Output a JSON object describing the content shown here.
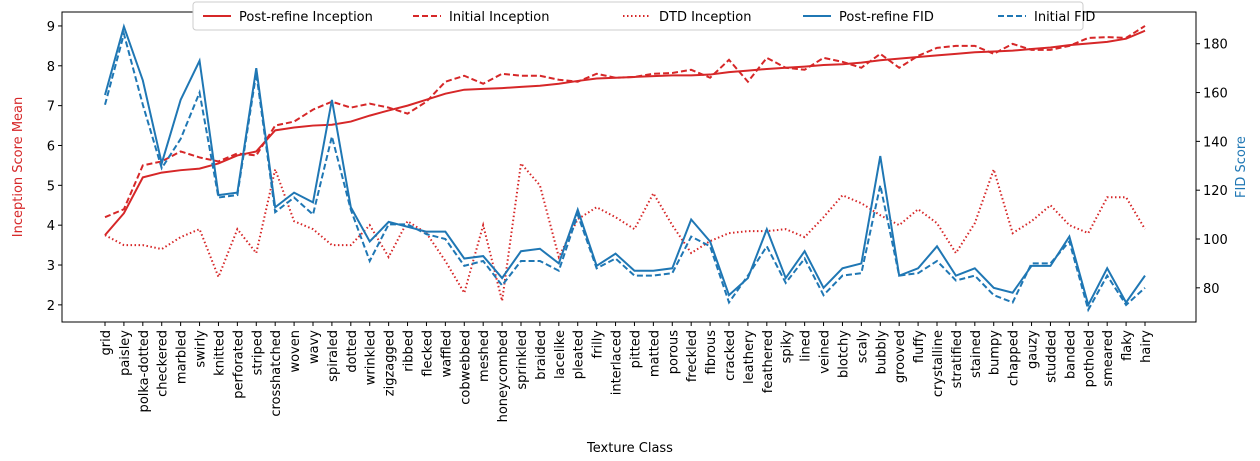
{
  "chart_data": {
    "type": "line",
    "x_label": "Texture Class",
    "y_label": "Inception Score Mean",
    "y2_label": "FID Score",
    "categories": [
      "grid",
      "paisley",
      "polka-dotted",
      "checkered",
      "marbled",
      "swirly",
      "knitted",
      "perforated",
      "striped",
      "crosshatched",
      "woven",
      "wavy",
      "spiraled",
      "dotted",
      "wrinkled",
      "zigzagged",
      "ribbed",
      "flecked",
      "waffled",
      "cobwebbed",
      "meshed",
      "honeycombed",
      "sprinkled",
      "braided",
      "lacelike",
      "pleated",
      "frilly",
      "interlaced",
      "pitted",
      "matted",
      "porous",
      "freckled",
      "fibrous",
      "cracked",
      "leathery",
      "feathered",
      "spiky",
      "lined",
      "veined",
      "blotchy",
      "scaly",
      "bubbly",
      "grooved",
      "fluffy",
      "crystalline",
      "stratified",
      "stained",
      "bumpy",
      "chapped",
      "gauzy",
      "studded",
      "banded",
      "potholed",
      "smeared",
      "flaky",
      "hairy"
    ],
    "ylim": [
      1.57,
      9.35
    ],
    "yticks": [
      2,
      3,
      4,
      5,
      6,
      7,
      8,
      9
    ],
    "y2lim": [
      66,
      193
    ],
    "y2ticks": [
      80,
      100,
      120,
      140,
      160,
      180
    ],
    "y_color": "#d62728",
    "y2_color": "#1f77b4",
    "legend": "upper center",
    "series": [
      {
        "name": "Post-refine Inception",
        "color": "#d62728",
        "linestyle": "solid",
        "values": [
          3.75,
          4.3,
          5.2,
          5.32,
          5.38,
          5.42,
          5.55,
          5.75,
          5.85,
          6.38,
          6.45,
          6.5,
          6.52,
          6.6,
          6.75,
          6.88,
          7.0,
          7.15,
          7.3,
          7.4,
          7.42,
          7.44,
          7.47,
          7.5,
          7.55,
          7.62,
          7.68,
          7.7,
          7.72,
          7.74,
          7.76,
          7.76,
          7.78,
          7.84,
          7.88,
          7.92,
          7.95,
          7.98,
          8.02,
          8.04,
          8.08,
          8.14,
          8.18,
          8.22,
          8.26,
          8.3,
          8.34,
          8.36,
          8.38,
          8.42,
          8.46,
          8.52,
          8.56,
          8.6,
          8.68,
          8.88
        ]
      },
      {
        "name": "Initial Inception",
        "color": "#d62728",
        "linestyle": "dashed",
        "values": [
          4.2,
          4.4,
          5.5,
          5.6,
          5.85,
          5.7,
          5.6,
          5.8,
          5.75,
          6.5,
          6.6,
          6.9,
          7.1,
          6.95,
          7.05,
          6.95,
          6.8,
          7.1,
          7.6,
          7.75,
          7.55,
          7.8,
          7.75,
          7.75,
          7.65,
          7.6,
          7.8,
          7.7,
          7.72,
          7.8,
          7.82,
          7.9,
          7.7,
          8.15,
          7.6,
          8.2,
          7.95,
          7.9,
          8.2,
          8.1,
          7.95,
          8.3,
          7.95,
          8.25,
          8.45,
          8.5,
          8.5,
          8.3,
          8.55,
          8.4,
          8.4,
          8.5,
          8.7,
          8.72,
          8.7,
          9.0
        ]
      },
      {
        "name": "DTD Inception",
        "color": "#d62728",
        "linestyle": "dotted",
        "values": [
          3.75,
          3.5,
          3.5,
          3.4,
          3.7,
          3.9,
          2.7,
          3.9,
          3.3,
          5.4,
          4.1,
          3.9,
          3.5,
          3.5,
          4.0,
          3.2,
          4.1,
          3.8,
          3.1,
          2.3,
          4.0,
          2.1,
          5.55,
          5.0,
          3.2,
          4.15,
          4.45,
          4.2,
          3.9,
          4.8,
          4.0,
          3.3,
          3.6,
          3.8,
          3.85,
          3.85,
          3.9,
          3.7,
          4.2,
          4.75,
          4.55,
          4.25,
          4.0,
          4.4,
          4.05,
          3.3,
          4.05,
          5.4,
          3.8,
          4.1,
          4.5,
          4.0,
          3.8,
          4.7,
          4.7,
          3.9
        ]
      },
      {
        "name": "Post-refine FID",
        "color": "#1f77b4",
        "linestyle": "solid",
        "axis": "y2",
        "values": [
          159,
          187,
          165,
          131,
          157,
          173,
          118,
          119,
          170,
          113,
          119,
          115,
          157,
          113,
          99,
          107,
          105,
          103,
          103,
          92,
          93,
          84,
          95,
          96,
          90,
          112,
          89,
          94,
          87,
          87,
          88,
          108,
          99,
          77,
          84,
          104,
          84,
          95,
          80,
          88,
          90,
          134,
          85,
          88,
          97,
          85,
          88,
          80,
          78,
          89,
          89,
          101,
          73,
          88,
          74,
          85
        ]
      },
      {
        "name": "Initial FID",
        "color": "#1f77b4",
        "linestyle": "dashed",
        "axis": "y2",
        "values": [
          155,
          184,
          155,
          129,
          141,
          160,
          117,
          118,
          168,
          111,
          117,
          110,
          142,
          112,
          91,
          106,
          106,
          102,
          100,
          89,
          91,
          81,
          91,
          91,
          87,
          110,
          88,
          92,
          85,
          85,
          86,
          101,
          97,
          74,
          85,
          97,
          82,
          92,
          77,
          85,
          86,
          122,
          85,
          86,
          91,
          83,
          85,
          77,
          74,
          90,
          90,
          99,
          71,
          85,
          73,
          80
        ]
      }
    ]
  }
}
